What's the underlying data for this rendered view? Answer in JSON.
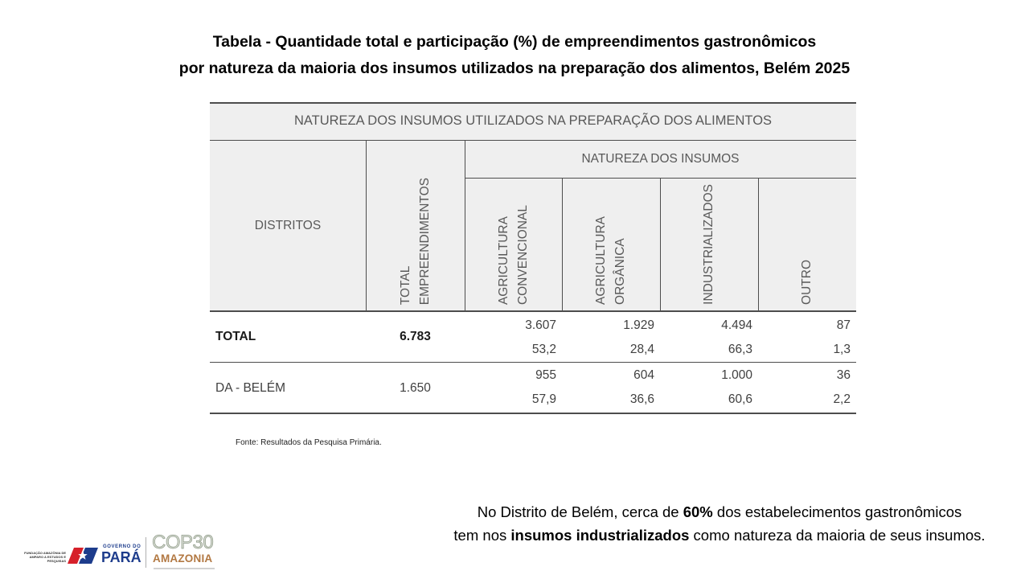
{
  "title": {
    "line1": "Tabela - Quantidade total e participação (%) de empreendimentos gastronômicos",
    "line2": "por natureza da maioria dos insumos utilizados na preparação dos alimentos, Belém 2025"
  },
  "table": {
    "caption": "NATUREZA DOS INSUMOS UTILIZADOS NA PREPARAÇÃO DOS ALIMENTOS",
    "headers": {
      "district": "DISTRITOS",
      "total": [
        "TOTAL",
        "EMPREENDIMENTOS"
      ],
      "group": "NATUREZA DOS INSUMOS",
      "columns": [
        [
          "AGRICULTURA",
          "CONVENCIONAL"
        ],
        [
          "AGRICULTURA",
          "ORGÂNICA"
        ],
        [
          "INDUSTRIALIZADOS"
        ],
        [
          "OUTRO"
        ]
      ]
    },
    "rows": [
      {
        "district": "TOTAL",
        "total": "6.783",
        "counts": [
          "3.607",
          "1.929",
          "4.494",
          "87"
        ],
        "percents": [
          "53,2",
          "28,4",
          "66,3",
          "1,3"
        ]
      },
      {
        "district": "DA - BELÉM",
        "total": "1.650",
        "counts": [
          "955",
          "604",
          "1.000",
          "36"
        ],
        "percents": [
          "57,9",
          "36,6",
          "60,6",
          "2,2"
        ]
      }
    ]
  },
  "source": "Fonte: Resultados da Pesquisa Primária.",
  "summary": {
    "line1": {
      "before": "No Distrito de Belém, cerca de ",
      "highlight": "60%",
      "after": " dos estabelecimentos gastronômicos"
    },
    "line2": {
      "before": "tem nos ",
      "highlight": "insumos industrializados",
      "after": " como natureza da maioria de seus insumos."
    }
  },
  "logos": {
    "fapespa": [
      "FUNDAÇÃO AMAZÔNIA DE",
      "AMPARO A ESTUDOS E",
      "PESQUISAS"
    ],
    "governo": {
      "top": "GOVERNO DO",
      "name": "PARÁ"
    },
    "cop30": {
      "name": "COP30",
      "sub": "AMAZONIA"
    }
  },
  "colors": {
    "header_bg": "#efefef",
    "rule": "#4d4d4d",
    "header_text": "#595959",
    "body_text": "#404040",
    "para_blue": "#1d3c8c",
    "para_red": "#d6202a",
    "cop_green": "#8e9a88",
    "cop_orange": "#b27842"
  }
}
